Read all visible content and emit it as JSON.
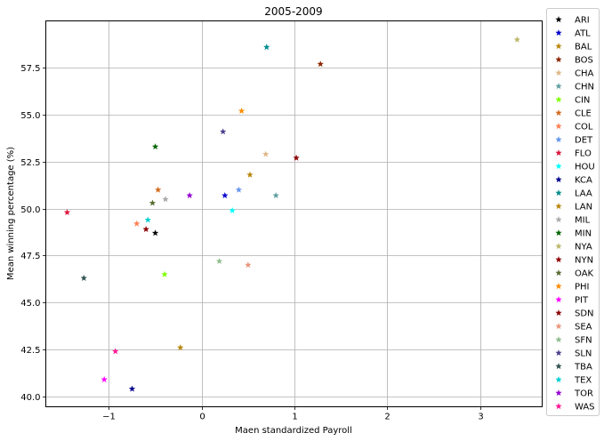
{
  "chart_data": {
    "type": "scatter",
    "title": "2005-2009",
    "xlabel": "Maen standardized Payroll",
    "ylabel": "Mean winning percentage (%)",
    "xlim": [
      -1.68,
      3.67
    ],
    "ylim": [
      39.45,
      60.0
    ],
    "xticks": [
      -1,
      0,
      1,
      2,
      3
    ],
    "yticks": [
      40.0,
      42.5,
      45.0,
      47.5,
      50.0,
      52.5,
      55.0,
      57.5
    ],
    "grid": true,
    "legend_position": "outside right",
    "marker": "star",
    "series": [
      {
        "name": "ARI",
        "color": "#000000",
        "x": -0.5,
        "y": 48.7
      },
      {
        "name": "ATL",
        "color": "#0000cc",
        "x": 0.25,
        "y": 50.7
      },
      {
        "name": "BAL",
        "color": "#b8860b",
        "x": -0.23,
        "y": 42.6
      },
      {
        "name": "BOS",
        "color": "#8b2500",
        "x": 1.28,
        "y": 57.7
      },
      {
        "name": "CHA",
        "color": "#deb887",
        "x": 0.69,
        "y": 52.9
      },
      {
        "name": "CHN",
        "color": "#5f9ea0",
        "x": 0.8,
        "y": 50.7
      },
      {
        "name": "CIN",
        "color": "#7fff00",
        "x": -0.4,
        "y": 46.5
      },
      {
        "name": "CLE",
        "color": "#d2691e",
        "x": -0.47,
        "y": 51.0
      },
      {
        "name": "COL",
        "color": "#ff7f50",
        "x": -0.7,
        "y": 49.2
      },
      {
        "name": "DET",
        "color": "#6495ed",
        "x": 0.4,
        "y": 51.0
      },
      {
        "name": "FLO",
        "color": "#dc143c",
        "x": -1.45,
        "y": 49.8
      },
      {
        "name": "HOU",
        "color": "#00ffff",
        "x": 0.33,
        "y": 49.9
      },
      {
        "name": "KCA",
        "color": "#00008b",
        "x": -0.75,
        "y": 40.4
      },
      {
        "name": "LAA",
        "color": "#008b8b",
        "x": 0.7,
        "y": 58.6
      },
      {
        "name": "LAN",
        "color": "#b8860b",
        "x": 0.52,
        "y": 51.8
      },
      {
        "name": "MIL",
        "color": "#a9a9a9",
        "x": -0.39,
        "y": 50.5
      },
      {
        "name": "MIN",
        "color": "#006400",
        "x": -0.5,
        "y": 53.3
      },
      {
        "name": "NYA",
        "color": "#bdb76b",
        "x": 3.4,
        "y": 59.0
      },
      {
        "name": "NYN",
        "color": "#8b0000",
        "x": 1.02,
        "y": 52.7
      },
      {
        "name": "OAK",
        "color": "#556b2f",
        "x": -0.53,
        "y": 50.3
      },
      {
        "name": "PHI",
        "color": "#ff8c00",
        "x": 0.43,
        "y": 55.2
      },
      {
        "name": "PIT",
        "color": "#ff00ff",
        "x": -1.05,
        "y": 40.9
      },
      {
        "name": "SDN",
        "color": "#8b0000",
        "x": -0.6,
        "y": 48.9
      },
      {
        "name": "SEA",
        "color": "#e9967a",
        "x": 0.5,
        "y": 47.0
      },
      {
        "name": "SFN",
        "color": "#8fbc8f",
        "x": 0.19,
        "y": 47.2
      },
      {
        "name": "SLN",
        "color": "#483d8b",
        "x": 0.23,
        "y": 54.1
      },
      {
        "name": "TBA",
        "color": "#2f4f4f",
        "x": -1.27,
        "y": 46.3
      },
      {
        "name": "TEX",
        "color": "#00ced1",
        "x": -0.58,
        "y": 49.4
      },
      {
        "name": "TOR",
        "color": "#9400d3",
        "x": -0.13,
        "y": 50.7
      },
      {
        "name": "WAS",
        "color": "#ff1493",
        "x": -0.93,
        "y": 42.4
      }
    ]
  }
}
